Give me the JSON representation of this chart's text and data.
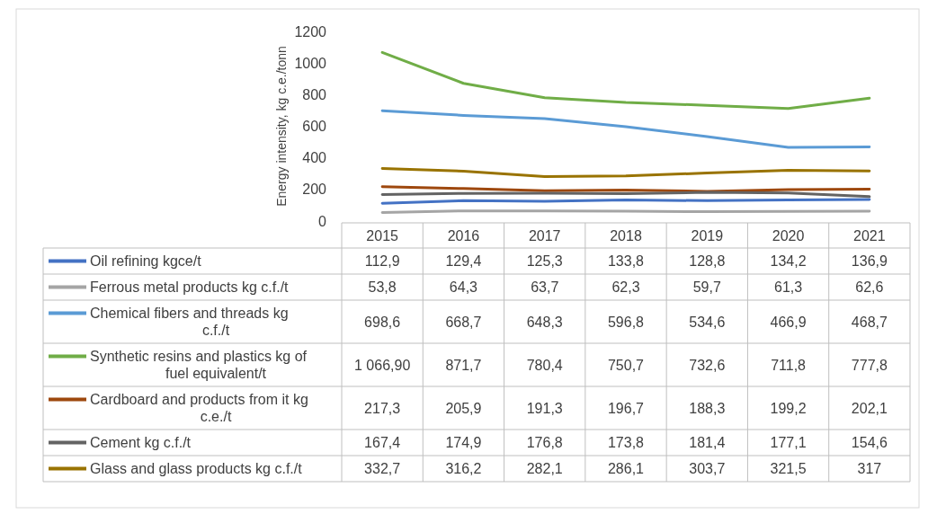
{
  "chart_data": {
    "type": "line",
    "ylabel": "Energy intensity, kg c.e./tonn",
    "categories": [
      "2015",
      "2016",
      "2017",
      "2018",
      "2019",
      "2020",
      "2021"
    ],
    "ylim": [
      0,
      1200
    ],
    "yticks": [
      0,
      200,
      400,
      600,
      800,
      1000,
      1200
    ],
    "legend": "bottom",
    "data_labels": true,
    "marker": "none",
    "line_style": "solid",
    "series": [
      {
        "name": "Oil refining kgce/t",
        "color": "#4472c4",
        "values": [
          112.9,
          129.4,
          125.3,
          133.8,
          128.8,
          134.2,
          136.9
        ],
        "value_labels": [
          "112,9",
          "129,4",
          "125,3",
          "133,8",
          "128,8",
          "134,2",
          "136,9"
        ]
      },
      {
        "name": "Ferrous metal products kg c.f./t",
        "color": "#a5a5a5",
        "values": [
          53.8,
          64.3,
          63.7,
          62.3,
          59.7,
          61.3,
          62.6
        ],
        "value_labels": [
          "53,8",
          "64,3",
          "63,7",
          "62,3",
          "59,7",
          "61,3",
          "62,6"
        ]
      },
      {
        "name": "Chemical fibers and threads kg c.f./t",
        "color": "#5b9bd5",
        "values": [
          698.6,
          668.7,
          648.3,
          596.8,
          534.6,
          466.9,
          468.7
        ],
        "value_labels": [
          "698,6",
          "668,7",
          "648,3",
          "596,8",
          "534,6",
          "466,9",
          "468,7"
        ]
      },
      {
        "name": "Synthetic resins and plastics kg of fuel equivalent/t",
        "color": "#70ad47",
        "values": [
          1066.9,
          871.7,
          780.4,
          750.7,
          732.6,
          711.8,
          777.8
        ],
        "value_labels": [
          "1 066,90",
          "871,7",
          "780,4",
          "750,7",
          "732,6",
          "711,8",
          "777,8"
        ]
      },
      {
        "name": "Cardboard and products from it kg c.e./t",
        "color": "#9e480e",
        "values": [
          217.3,
          205.9,
          191.3,
          196.7,
          188.3,
          199.2,
          202.1
        ],
        "value_labels": [
          "217,3",
          "205,9",
          "191,3",
          "196,7",
          "188,3",
          "199,2",
          "202,1"
        ]
      },
      {
        "name": "Cement kg c.f./t",
        "color": "#636363",
        "values": [
          167.4,
          174.9,
          176.8,
          173.8,
          181.4,
          177.1,
          154.6
        ],
        "value_labels": [
          "167,4",
          "174,9",
          "176,8",
          "173,8",
          "181,4",
          "177,1",
          "154,6"
        ]
      },
      {
        "name": "Glass and glass products kg c.f./t",
        "color": "#997300",
        "values": [
          332.7,
          316.2,
          282.1,
          286.1,
          303.7,
          321.5,
          317
        ],
        "value_labels": [
          "332,7",
          "316,2",
          "282,1",
          "286,1",
          "303,7",
          "321,5",
          "317"
        ]
      }
    ]
  }
}
